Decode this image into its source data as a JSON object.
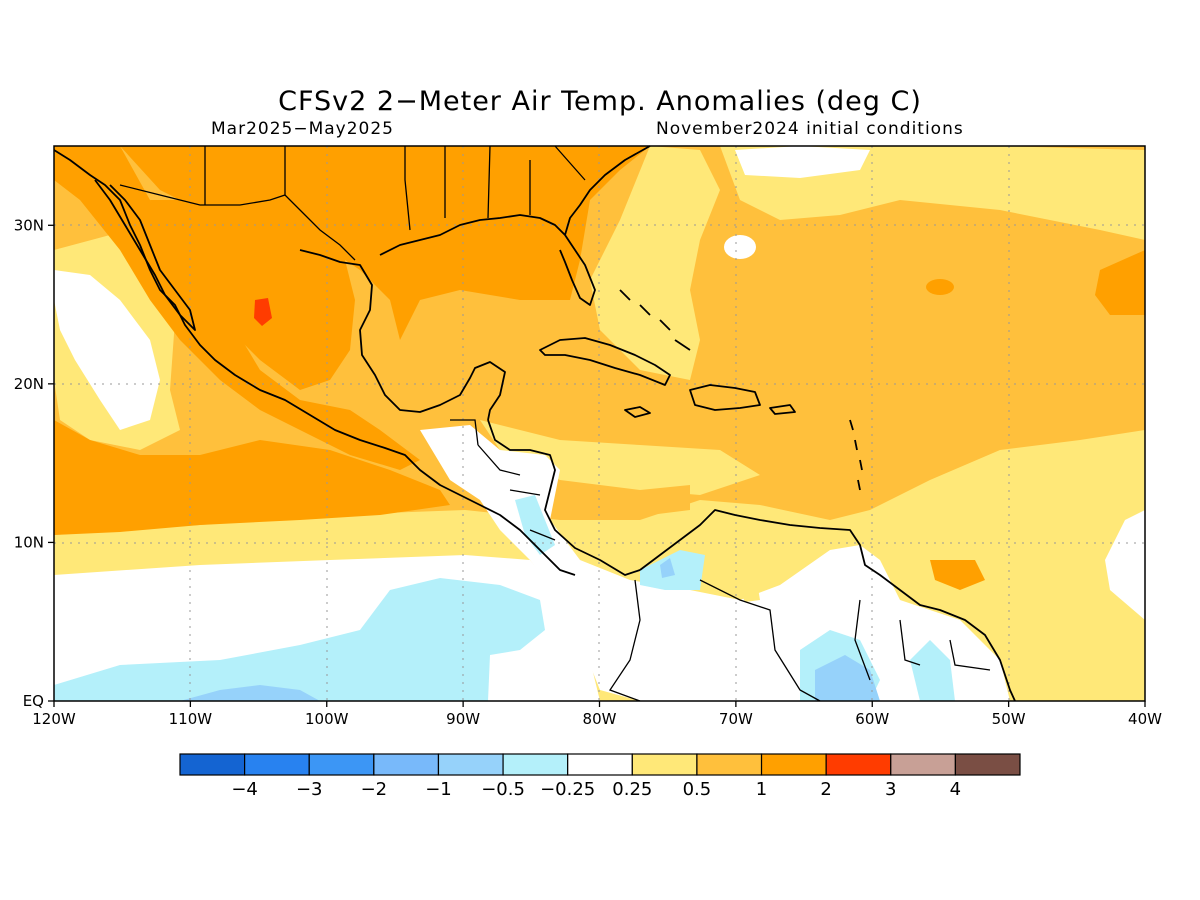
{
  "title": "CFSv2 2−Meter Air Temp. Anomalies (deg C)",
  "subtitle_left": "Mar2025−May2025",
  "subtitle_right": "November2024 initial conditions",
  "map": {
    "lon_range": [
      -120,
      -40
    ],
    "lat_range": [
      0,
      35
    ],
    "lon_ticks": [
      {
        "value": -120,
        "label": "120W"
      },
      {
        "value": -110,
        "label": "110W"
      },
      {
        "value": -100,
        "label": "100W"
      },
      {
        "value": -90,
        "label": "90W"
      },
      {
        "value": -80,
        "label": "80W"
      },
      {
        "value": -70,
        "label": "70W"
      },
      {
        "value": -60,
        "label": "60W"
      },
      {
        "value": -50,
        "label": "50W"
      },
      {
        "value": -40,
        "label": "40W"
      }
    ],
    "lat_ticks": [
      {
        "value": 0,
        "label": "EQ"
      },
      {
        "value": 10,
        "label": "10N"
      },
      {
        "value": 20,
        "label": "20N"
      },
      {
        "value": 30,
        "label": "30N"
      }
    ],
    "grid": true
  },
  "colorbar": {
    "colors": [
      "#1464d2",
      "#2882f0",
      "#3c96f5",
      "#78b9fa",
      "#96d2fa",
      "#b4f0fa",
      "#ffffff",
      "#ffe878",
      "#ffc03c",
      "#ffa000",
      "#ff3c00",
      "#c8a096",
      "#7a4e44"
    ],
    "labels": [
      "−4",
      "−3",
      "−2",
      "−1",
      "−0.5",
      "−0.25",
      "0.25",
      "0.5",
      "1",
      "2",
      "3",
      "4"
    ]
  },
  "colors": {
    "warm1": "#ffe878",
    "warm2": "#ffc03c",
    "warm3": "#ffa000",
    "hot": "#ff3c00",
    "cool1": "#b4f0fa",
    "cool2": "#96d2fa",
    "neutral": "#ffffff"
  }
}
